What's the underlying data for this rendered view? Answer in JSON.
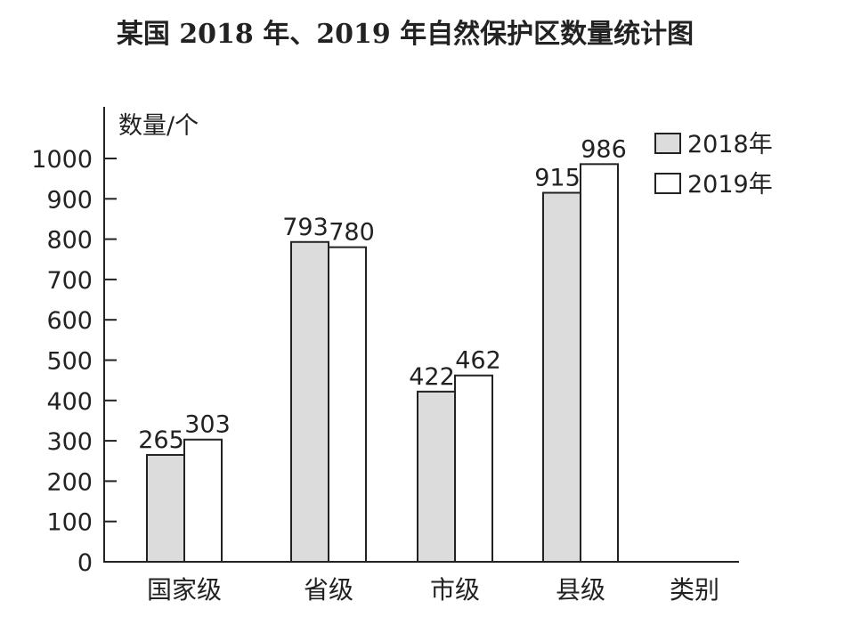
{
  "chart_data": {
    "type": "bar",
    "title": "某国 2018 年、2019 年自然保护区数量统计图",
    "ylabel": "数量/个",
    "xlabel": "类别",
    "categories": [
      "国家级",
      "省级",
      "市级",
      "县级"
    ],
    "series": [
      {
        "name": "2018年",
        "values": [
          265,
          793,
          422,
          915
        ],
        "color": "#dcdcdc"
      },
      {
        "name": "2019年",
        "values": [
          303,
          780,
          462,
          986
        ],
        "color": "#ffffff"
      }
    ],
    "yticks": [
      0,
      100,
      200,
      300,
      400,
      500,
      600,
      700,
      800,
      900,
      1000
    ],
    "ylim": [
      0,
      1000
    ],
    "grid": false,
    "legend": "top-right"
  }
}
